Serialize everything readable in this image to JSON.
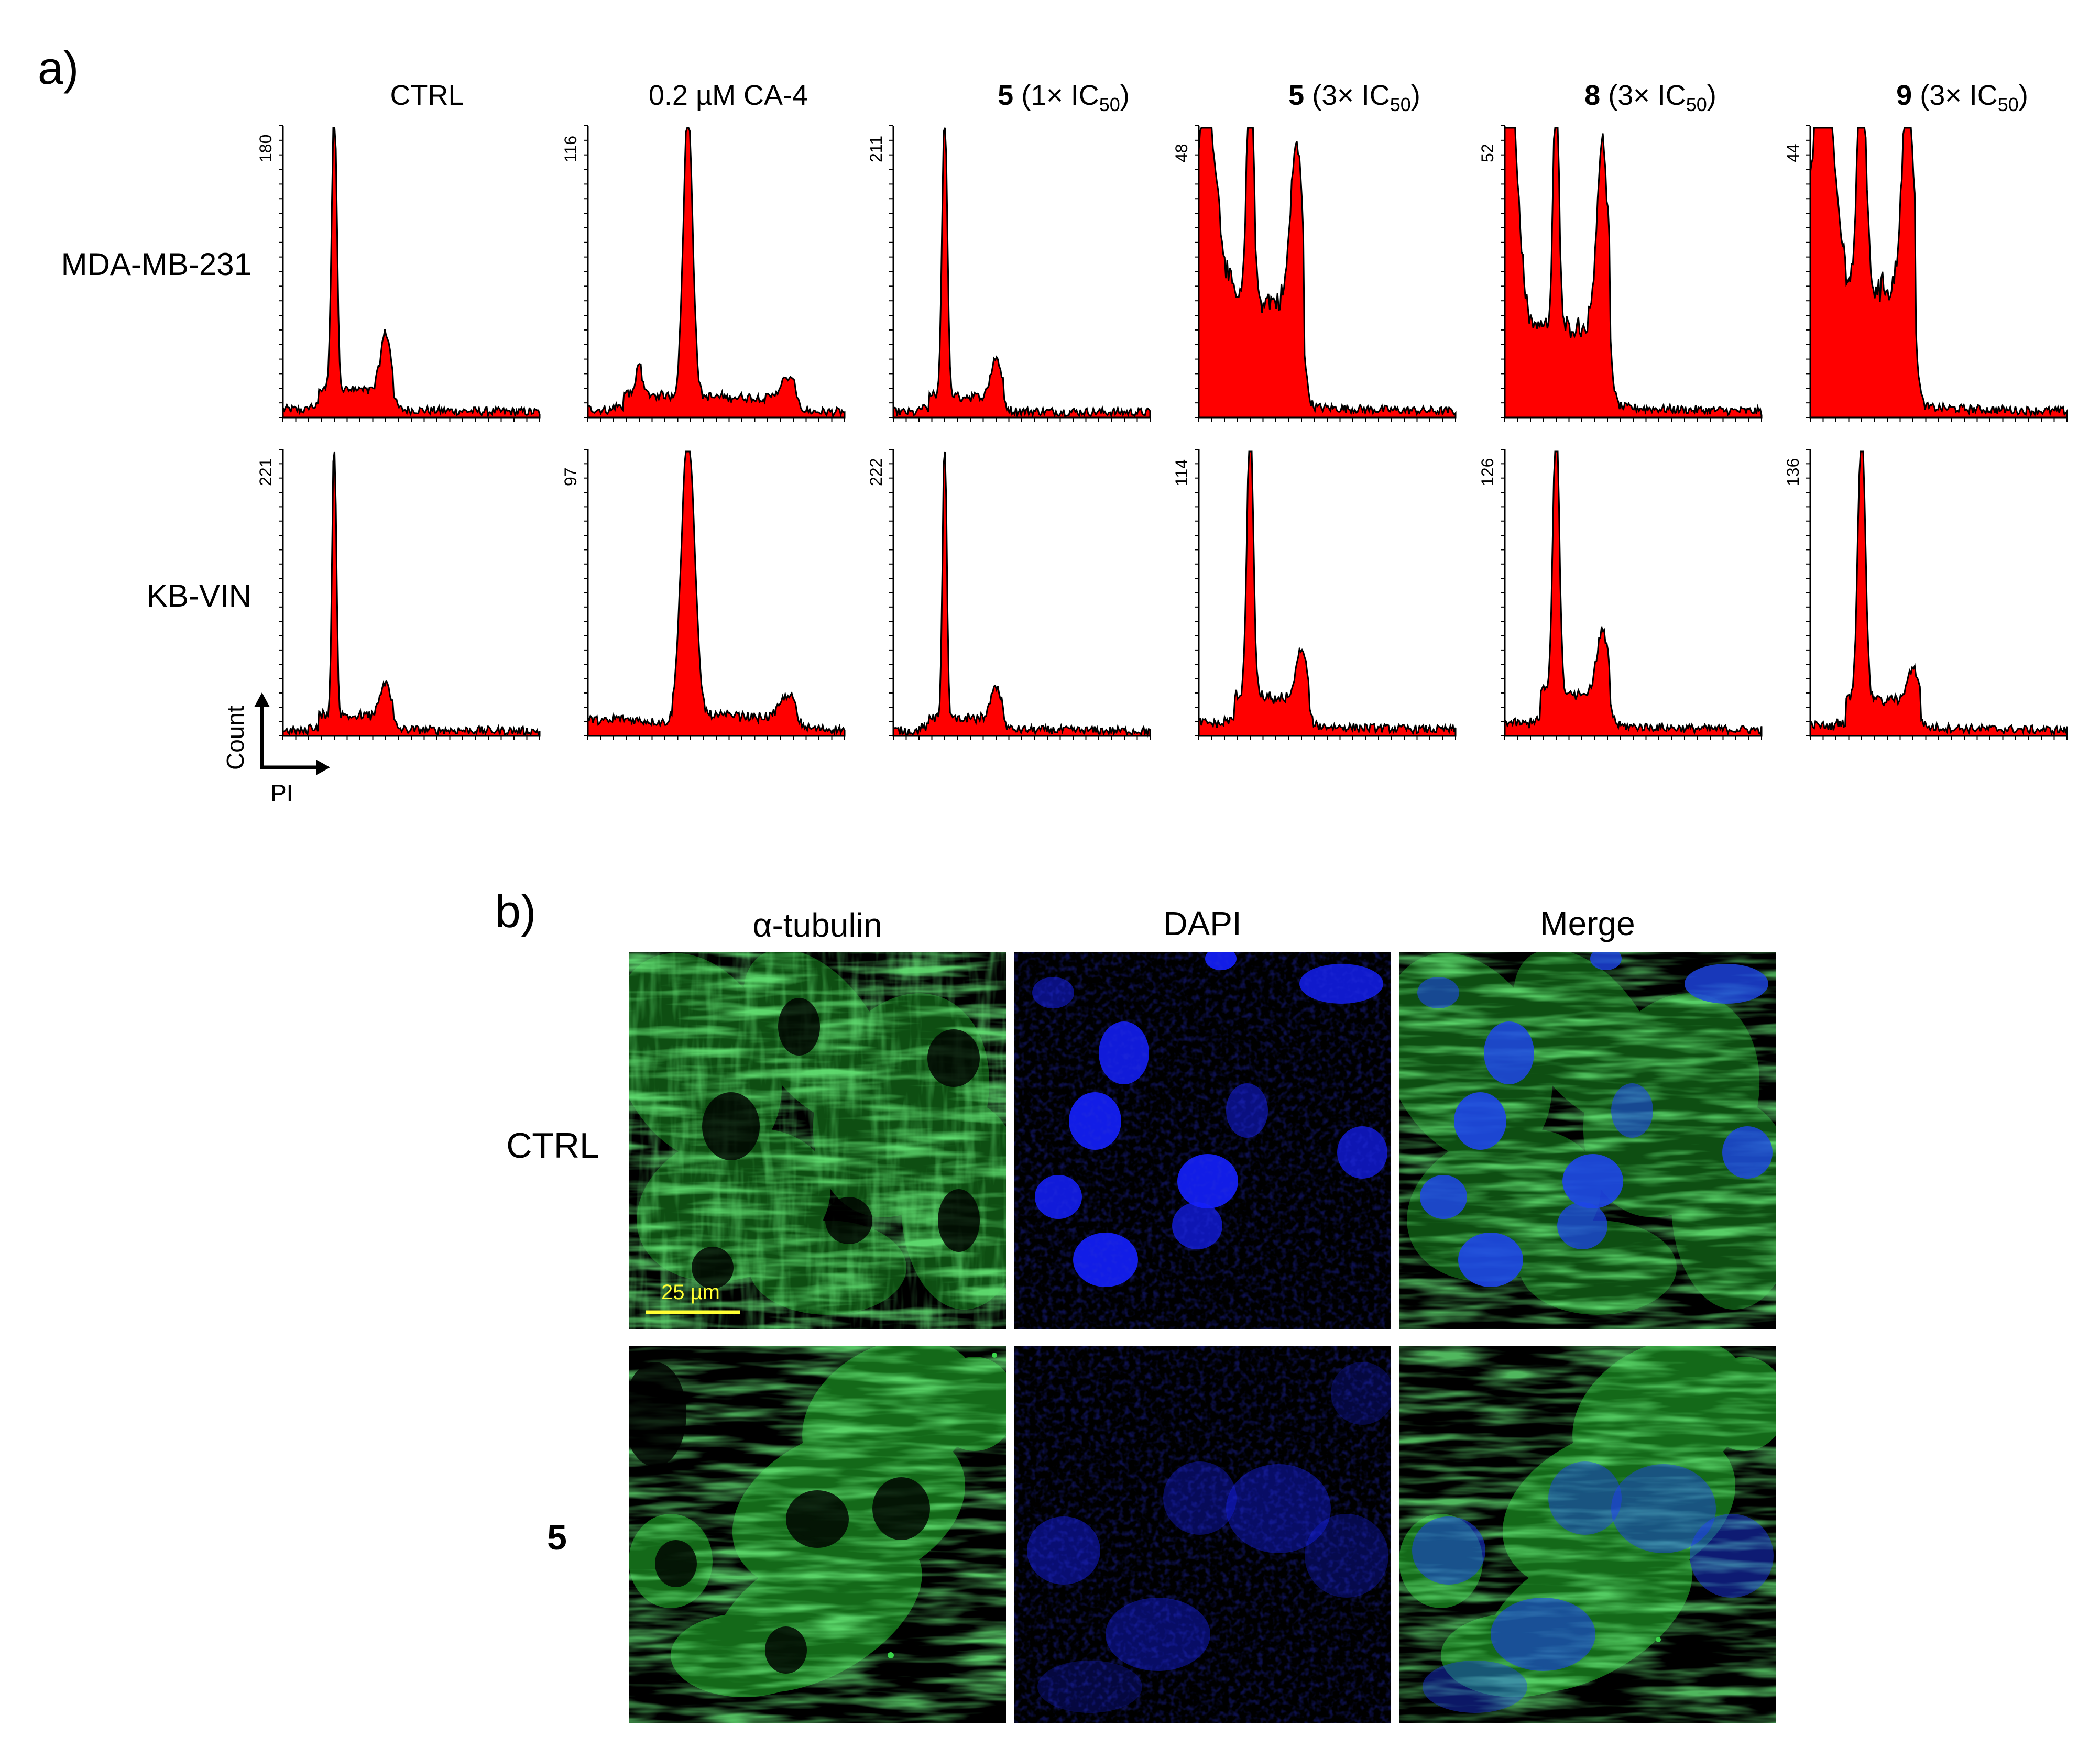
{
  "panel_a": {
    "label": "a)",
    "columns": [
      {
        "bold": "",
        "text": "CTRL",
        "sub": "",
        "close": ""
      },
      {
        "bold": "",
        "text": "0.2 µM  CA-4",
        "sub": "",
        "close": ""
      },
      {
        "bold": "5",
        "text": "  (1× IC",
        "sub": "50",
        "close": ")"
      },
      {
        "bold": "5",
        "text": "  (3× IC",
        "sub": "50",
        "close": ")"
      },
      {
        "bold": "8",
        "text": " (3× IC",
        "sub": "50",
        "close": ")"
      },
      {
        "bold": "9",
        "text": " (3× IC",
        "sub": "50",
        "close": ")"
      }
    ],
    "rows": [
      "MDA-MB-231",
      "KB-VIN"
    ],
    "y_axis_label": "Count",
    "x_axis_label": "PI",
    "fill_color": "#ff0000",
    "line_color": "#000000"
  },
  "chart_data": [
    {
      "type": "area",
      "row": "MDA-MB-231",
      "column": "CTRL",
      "ymax": 180,
      "peaks": [
        {
          "x": 0.2,
          "y": 1.0,
          "w": 0.01
        },
        {
          "x": 0.4,
          "y": 0.2,
          "w": 0.02
        }
      ],
      "baseline": 0.03,
      "sphase": 0.07
    },
    {
      "type": "area",
      "row": "MDA-MB-231",
      "column": "0.2 µM CA-4",
      "ymax": 116,
      "peaks": [
        {
          "x": 0.2,
          "y": 0.12,
          "w": 0.01
        },
        {
          "x": 0.39,
          "y": 1.0,
          "w": 0.018
        },
        {
          "x": 0.78,
          "y": 0.07,
          "w": 0.03
        }
      ],
      "baseline": 0.03,
      "sphase": 0.05
    },
    {
      "type": "area",
      "row": "MDA-MB-231",
      "column": "5 (1× IC50)",
      "ymax": 211,
      "peaks": [
        {
          "x": 0.2,
          "y": 1.0,
          "w": 0.01
        },
        {
          "x": 0.4,
          "y": 0.14,
          "w": 0.02
        }
      ],
      "baseline": 0.02,
      "sphase": 0.05
    },
    {
      "type": "area",
      "row": "MDA-MB-231",
      "column": "5 (3× IC50)",
      "ymax": 48,
      "peaks": [
        {
          "x": 0.03,
          "y": 0.7,
          "w": 0.04
        },
        {
          "x": 0.2,
          "y": 0.95,
          "w": 0.012
        },
        {
          "x": 0.38,
          "y": 0.55,
          "w": 0.022
        }
      ],
      "baseline": 0.05,
      "sphase": 0.4
    },
    {
      "type": "area",
      "row": "MDA-MB-231",
      "column": "8 (3× IC50)",
      "ymax": 52,
      "peaks": [
        {
          "x": 0.02,
          "y": 0.88,
          "w": 0.03
        },
        {
          "x": 0.2,
          "y": 1.0,
          "w": 0.01
        },
        {
          "x": 0.38,
          "y": 0.64,
          "w": 0.022
        }
      ],
      "baseline": 0.05,
      "sphase": 0.3
    },
    {
      "type": "area",
      "row": "MDA-MB-231",
      "column": "9 (3× IC50)",
      "ymax": 44,
      "peaks": [
        {
          "x": 0.05,
          "y": 0.8,
          "w": 0.04
        },
        {
          "x": 0.2,
          "y": 0.95,
          "w": 0.015
        },
        {
          "x": 0.38,
          "y": 0.72,
          "w": 0.022
        }
      ],
      "baseline": 0.05,
      "sphase": 0.45
    },
    {
      "type": "area",
      "row": "KB-VIN",
      "column": "CTRL",
      "ymax": 221,
      "peaks": [
        {
          "x": 0.2,
          "y": 1.0,
          "w": 0.008
        },
        {
          "x": 0.4,
          "y": 0.12,
          "w": 0.02
        }
      ],
      "baseline": 0.02,
      "sphase": 0.05
    },
    {
      "type": "area",
      "row": "KB-VIN",
      "column": "0.2 µM CA-4",
      "ymax": 97,
      "peaks": [
        {
          "x": 0.39,
          "y": 1.0,
          "w": 0.025
        },
        {
          "x": 0.78,
          "y": 0.08,
          "w": 0.03
        }
      ],
      "baseline": 0.06,
      "sphase": 0.04
    },
    {
      "type": "area",
      "row": "KB-VIN",
      "column": "5 (1× IC50)",
      "ymax": 222,
      "peaks": [
        {
          "x": 0.2,
          "y": 1.0,
          "w": 0.008
        },
        {
          "x": 0.4,
          "y": 0.11,
          "w": 0.02
        }
      ],
      "baseline": 0.02,
      "sphase": 0.04
    },
    {
      "type": "area",
      "row": "KB-VIN",
      "column": "5 (3× IC50)",
      "ymax": 114,
      "peaks": [
        {
          "x": 0.2,
          "y": 1.0,
          "w": 0.012
        },
        {
          "x": 0.4,
          "y": 0.18,
          "w": 0.02
        }
      ],
      "baseline": 0.05,
      "sphase": 0.1
    },
    {
      "type": "area",
      "row": "KB-VIN",
      "column": "8 (3× IC50)",
      "ymax": 126,
      "peaks": [
        {
          "x": 0.2,
          "y": 1.0,
          "w": 0.012
        },
        {
          "x": 0.38,
          "y": 0.22,
          "w": 0.022
        }
      ],
      "baseline": 0.05,
      "sphase": 0.12
    },
    {
      "type": "area",
      "row": "KB-VIN",
      "column": "9 (3× IC50)",
      "ymax": 136,
      "peaks": [
        {
          "x": 0.2,
          "y": 1.0,
          "w": 0.014
        },
        {
          "x": 0.4,
          "y": 0.12,
          "w": 0.02
        }
      ],
      "baseline": 0.04,
      "sphase": 0.1
    }
  ],
  "panel_b": {
    "label": "b)",
    "columns": [
      "α-tubulin",
      "DAPI",
      "Merge"
    ],
    "rows": [
      {
        "text": "CTRL",
        "bold": false
      },
      {
        "text": "5",
        "bold": true
      }
    ],
    "scale_bar": "25 µm",
    "scale_bar_color": "#ffff33",
    "channel_colors": {
      "tubulin": "#22c22e",
      "dapi": "#1420ff",
      "background": "#000000"
    }
  }
}
